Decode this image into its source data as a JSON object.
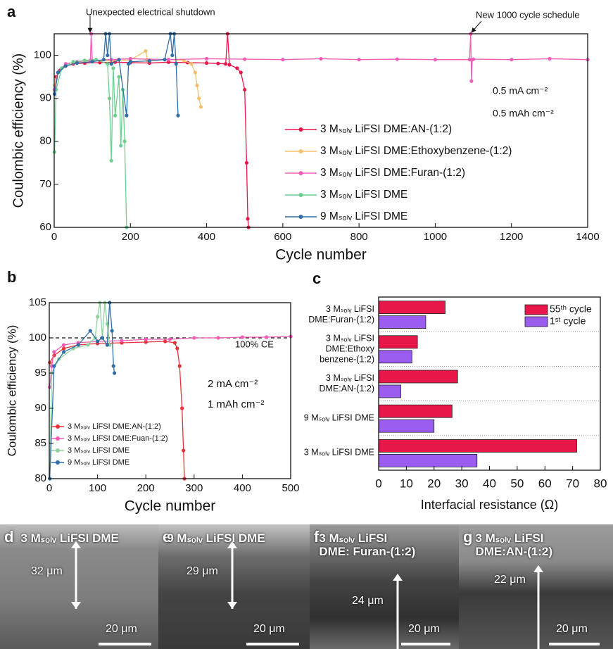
{
  "chart_data": [
    {
      "type": "line",
      "panel": "a",
      "xlabel": "Cycle number",
      "ylabel": "Coulombic efficiency (%)",
      "xlim": [
        0,
        1400
      ],
      "xticks": [
        0,
        200,
        400,
        600,
        800,
        1000,
        1200,
        1400
      ],
      "ylim": [
        60,
        105
      ],
      "yticks": [
        60,
        70,
        80,
        90,
        100
      ],
      "annotations": [
        "Unexpected electrical shutdown",
        "New 1000 cycle schedule",
        "0.5 mA cm⁻²",
        "0.5 mAh cm⁻²"
      ],
      "series": [
        {
          "name": "3 Mₛₒₗᵥ LiFSI DME:AN-(1:2)",
          "color": "#e8174a",
          "x": [
            1,
            5,
            15,
            30,
            50,
            80,
            120,
            160,
            200,
            250,
            300,
            350,
            400,
            430,
            450,
            455,
            460,
            480,
            490,
            500,
            505,
            508,
            510
          ],
          "values": [
            92,
            95,
            96.5,
            97.5,
            98,
            98.2,
            98.3,
            98.4,
            98.3,
            98.2,
            98.4,
            98.3,
            98.2,
            98.1,
            98,
            105,
            97.8,
            97,
            96,
            92,
            75,
            62,
            60
          ]
        },
        {
          "name": "3 Mₛₒₗᵥ LiFSI DME:Ethoxybenzene-(1:2)",
          "color": "#f5c06b",
          "x": [
            1,
            10,
            30,
            60,
            100,
            150,
            200,
            240,
            245,
            250,
            300,
            340,
            360,
            370,
            375,
            380,
            385
          ],
          "values": [
            93,
            96,
            97.5,
            98.2,
            98.6,
            98.8,
            98.9,
            101,
            98.8,
            98.9,
            99,
            98.8,
            98,
            96,
            93,
            90,
            88
          ]
        },
        {
          "name": "3 Mₛₒₗᵥ LiFSI DME:Furan-(1:2)",
          "color": "#f25cb5",
          "x": [
            1,
            10,
            30,
            60,
            95,
            97,
            100,
            150,
            200,
            300,
            400,
            500,
            600,
            700,
            800,
            900,
            1000,
            1090,
            1093,
            1095,
            1097,
            1100,
            1200,
            1300,
            1400
          ],
          "values": [
            92,
            96,
            98,
            98.5,
            98.8,
            105,
            98.8,
            99,
            99.2,
            99,
            99.2,
            99.1,
            99,
            99.2,
            99,
            99.1,
            99,
            99,
            105,
            94,
            99,
            99.1,
            99,
            99.2,
            99
          ]
        },
        {
          "name": "3 Mₛₒₗᵥ LiFSI DME",
          "color": "#6bcf8f",
          "x": [
            1,
            5,
            20,
            50,
            80,
            110,
            140,
            145,
            150,
            155,
            160,
            170,
            175,
            180,
            185,
            190
          ],
          "values": [
            77.5,
            92,
            97,
            98.5,
            98.8,
            99,
            98,
            90,
            75.5,
            97,
            86,
            95,
            79,
            92,
            80,
            60
          ]
        },
        {
          "name": "9 Mₛₒₗᵥ LiFSI DME",
          "color": "#2f6ea6",
          "x": [
            1,
            10,
            30,
            60,
            100,
            130,
            135,
            140,
            145,
            150,
            170,
            190,
            195,
            200,
            250,
            290,
            305,
            310,
            315,
            320,
            325
          ],
          "values": [
            91,
            96,
            97.5,
            98.2,
            98.5,
            99,
            105,
            100,
            105,
            98,
            99,
            86,
            98,
            98.5,
            98.7,
            99,
            105,
            100,
            105,
            98,
            86
          ]
        }
      ]
    },
    {
      "type": "line",
      "panel": "b",
      "xlabel": "Cycle number",
      "ylabel": "Coulombic efficiency (%)",
      "xlim": [
        0,
        500
      ],
      "xticks": [
        0,
        100,
        200,
        300,
        400,
        500
      ],
      "ylim": [
        80,
        105
      ],
      "yticks": [
        80,
        85,
        90,
        95,
        100,
        105
      ],
      "hline": 100,
      "annotations": [
        "100% CE",
        "2 mA cm⁻²",
        "1 mAh cm⁻²"
      ],
      "series": [
        {
          "name": "3 Mₛₒₗᵥ LiFSI DME:AN-(1:2)",
          "color": "#e8323a",
          "x": [
            1,
            10,
            30,
            60,
            100,
            150,
            200,
            240,
            260,
            265,
            270,
            275,
            278,
            280
          ],
          "values": [
            96.5,
            97.5,
            98.5,
            99,
            99.2,
            99.3,
            99.4,
            99.5,
            99.3,
            98.5,
            96,
            90,
            84,
            80
          ]
        },
        {
          "name": "3 Mₛₒₗᵥ LiFSI DME:Fuan-(1:2)",
          "color": "#f25cb5",
          "x": [
            1,
            5,
            10,
            30,
            60,
            100,
            150,
            200,
            250,
            300,
            350,
            400,
            450,
            500
          ],
          "values": [
            93,
            96,
            98,
            99,
            99.3,
            99.5,
            99.6,
            99.8,
            99.8,
            100,
            100,
            100.1,
            100.1,
            100.2
          ]
        },
        {
          "name": "3 Mₛₒₗᵥ LiFSI DME",
          "color": "#8fd19e",
          "x": [
            1,
            5,
            20,
            50,
            80,
            95,
            100,
            105,
            110,
            115,
            120,
            125
          ],
          "values": [
            80,
            95,
            97,
            98.5,
            99,
            100,
            103,
            105,
            100,
            105,
            102,
            99
          ]
        },
        {
          "name": "9 Mₛₒₗᵥ LiFSI DME",
          "color": "#2f6ea6",
          "x": [
            1,
            10,
            30,
            60,
            85,
            100,
            110,
            120,
            125,
            130,
            133,
            135
          ],
          "values": [
            80,
            96,
            98,
            99,
            101,
            99.5,
            100,
            99,
            105,
            101,
            96,
            95
          ]
        }
      ]
    },
    {
      "type": "barh",
      "panel": "c",
      "xlabel": "Interfacial resistance (Ω)",
      "xlim": [
        0,
        80
      ],
      "xticks": [
        0,
        10,
        20,
        30,
        40,
        50,
        60,
        70,
        80
      ],
      "categories": [
        "3 Mₛₒₗᵥ LiFSI DME:Furan-(1:2)",
        "3 Mₛₒₗᵥ LiFSI DME:Ethoxy benzene-(1:2)",
        "3 Mₛₒₗᵥ LiFSI DME:AN-(1:2)",
        "9 Mₛₒₗᵥ LiFSI DME",
        "3 Mₛₒₗᵥ LiFSI DME"
      ],
      "series": [
        {
          "name": "55ᵗʰ cycle",
          "color": "#e8174a",
          "values": [
            24,
            14,
            28.5,
            26.5,
            71.5
          ]
        },
        {
          "name": "1ˢᵗ cycle",
          "color": "#9b5cf0",
          "values": [
            17,
            12,
            8,
            20,
            35.5
          ]
        }
      ]
    }
  ],
  "images": [
    {
      "panel": "d",
      "label": "3 Mₛₒₗᵥ LiFSI DME",
      "thickness": "32 μm",
      "scale": "20 μm"
    },
    {
      "panel": "e",
      "label": "9 Mₛₒₗᵥ LiFSI DME",
      "thickness": "29 μm",
      "scale": "20 μm"
    },
    {
      "panel": "f",
      "label": "3 Mₛₒₗᵥ LiFSI DME: Furan-(1:2)",
      "thickness": "24 μm",
      "scale": "20 μm"
    },
    {
      "panel": "g",
      "label": "3 Mₛₒₗᵥ LiFSI DME:AN-(1:2)",
      "thickness": "22 μm",
      "scale": "20 μm"
    }
  ]
}
